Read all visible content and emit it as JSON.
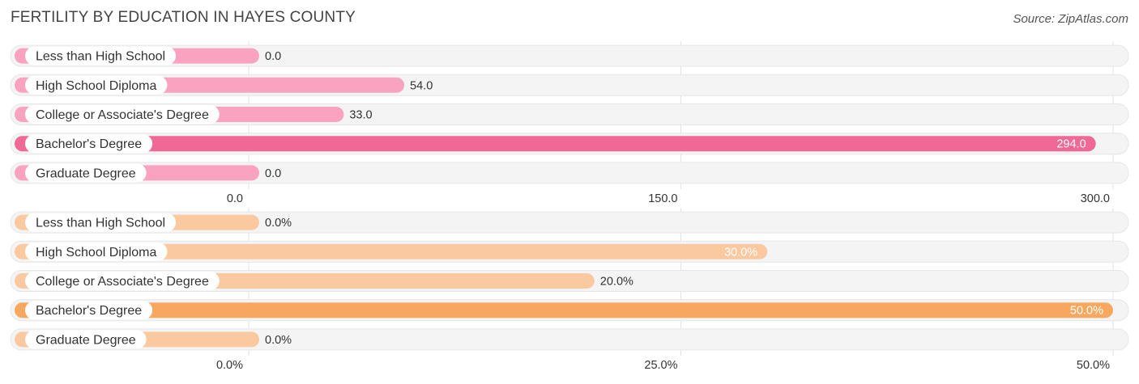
{
  "title": "FERTILITY BY EDUCATION IN HAYES COUNTY",
  "source": "Source: ZipAtlas.com",
  "chart_data": [
    {
      "type": "bar",
      "orientation": "horizontal",
      "categories": [
        "Less than High School",
        "High School Diploma",
        "College or Associate's Degree",
        "Bachelor's Degree",
        "Graduate Degree"
      ],
      "values": [
        0.0,
        54.0,
        33.0,
        294.0,
        0.0
      ],
      "value_labels": [
        "0.0",
        "54.0",
        "33.0",
        "294.0",
        "0.0"
      ],
      "xlim": [
        0,
        300
      ],
      "ticks": [
        0,
        150,
        300
      ],
      "tick_labels": [
        "0.0",
        "150.0",
        "300.0"
      ],
      "highlight_index": 3,
      "colors": {
        "bar": "#f9a3c1",
        "highlight": "#f06895"
      }
    },
    {
      "type": "bar",
      "orientation": "horizontal",
      "categories": [
        "Less than High School",
        "High School Diploma",
        "College or Associate's Degree",
        "Bachelor's Degree",
        "Graduate Degree"
      ],
      "values": [
        0.0,
        30.0,
        20.0,
        50.0,
        0.0
      ],
      "value_labels": [
        "0.0%",
        "30.0%",
        "20.0%",
        "50.0%",
        "0.0%"
      ],
      "xlim": [
        0,
        50
      ],
      "ticks": [
        0,
        25,
        50
      ],
      "tick_labels": [
        "0.0%",
        "25.0%",
        "50.0%"
      ],
      "highlight_index": 3,
      "colors": {
        "bar": "#fac99f",
        "highlight": "#f8a85e"
      }
    }
  ]
}
